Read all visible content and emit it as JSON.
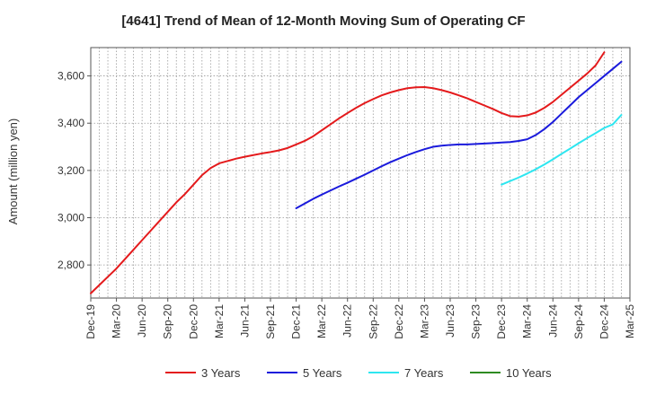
{
  "chart_data": {
    "type": "line",
    "title": "[4641]  Trend of Mean of 12-Month Moving Sum of Operating CF",
    "xlabel": "",
    "ylabel": "Amount (million yen)",
    "ylim": [
      2660,
      3720
    ],
    "yticks": [
      2800,
      3000,
      3200,
      3400,
      3600
    ],
    "ytick_labels": [
      "2,800",
      "3,000",
      "3,200",
      "3,400",
      "3,600"
    ],
    "x_tick_labels": [
      "Dec-19",
      "Mar-20",
      "Jun-20",
      "Sep-20",
      "Dec-20",
      "Mar-21",
      "Jun-21",
      "Sep-21",
      "Dec-21",
      "Mar-22",
      "Jun-22",
      "Sep-22",
      "Dec-22",
      "Mar-23",
      "Jun-23",
      "Sep-23",
      "Dec-23",
      "Mar-24",
      "Jun-24",
      "Sep-24",
      "Dec-24",
      "Mar-25"
    ],
    "grid": true,
    "legend_position": "bottom",
    "series": [
      {
        "name": "3 Years",
        "color": "#e41a1c",
        "start_index": 0,
        "values": [
          2680,
          2715,
          2750,
          2785,
          2825,
          2865,
          2905,
          2945,
          2985,
          3025,
          3065,
          3100,
          3140,
          3180,
          3210,
          3230,
          3240,
          3250,
          3258,
          3265,
          3272,
          3278,
          3285,
          3295,
          3310,
          3325,
          3345,
          3370,
          3395,
          3420,
          3443,
          3465,
          3485,
          3502,
          3518,
          3530,
          3540,
          3548,
          3552,
          3553,
          3548,
          3540,
          3530,
          3518,
          3505,
          3490,
          3475,
          3460,
          3443,
          3430,
          3428,
          3433,
          3445,
          3465,
          3490,
          3520,
          3550,
          3580,
          3610,
          3645,
          3700
        ]
      },
      {
        "name": "5 Years",
        "color": "#1a1adc",
        "start_index": 24,
        "values": [
          3040,
          3060,
          3080,
          3098,
          3115,
          3132,
          3148,
          3165,
          3182,
          3200,
          3218,
          3235,
          3250,
          3265,
          3278,
          3290,
          3300,
          3305,
          3308,
          3310,
          3310,
          3312,
          3314,
          3316,
          3318,
          3320,
          3325,
          3332,
          3350,
          3375,
          3405,
          3440,
          3475,
          3510,
          3540,
          3570,
          3600,
          3630,
          3660
        ]
      },
      {
        "name": "7 Years",
        "color": "#2ee6f0",
        "start_index": 48,
        "values": [
          3140,
          3155,
          3170,
          3187,
          3205,
          3225,
          3247,
          3270,
          3292,
          3315,
          3337,
          3358,
          3380,
          3395,
          3435
        ]
      },
      {
        "name": "10 Years",
        "color": "#2e8b22",
        "start_index": 0,
        "values": []
      }
    ]
  }
}
